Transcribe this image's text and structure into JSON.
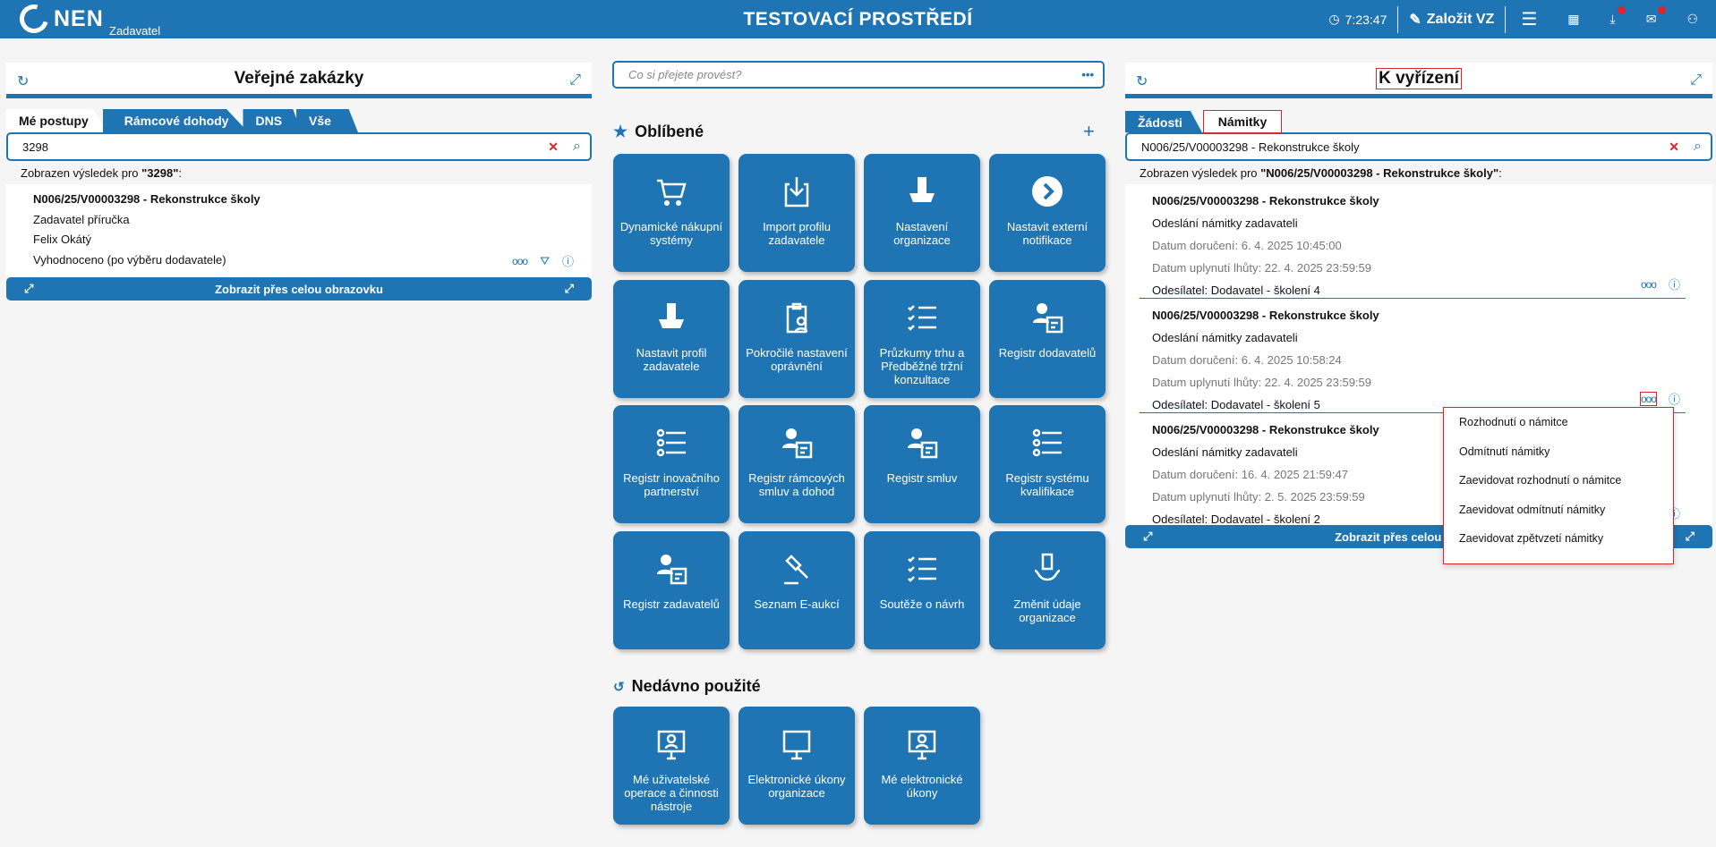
{
  "header": {
    "logo": "NEN",
    "logo_sub": "Zadavatel",
    "title": "TESTOVACÍ PROSTŘEDÍ",
    "time": "7:23:47",
    "create_label": "Založit VZ",
    "colors": {
      "brand": "#1f74b3",
      "alert": "#d9252b"
    }
  },
  "left": {
    "title": "Veřejné zakázky",
    "tabs": [
      "Mé postupy",
      "Rámcové dohody",
      "DNS",
      "Vše"
    ],
    "search_value": "3298",
    "found_prefix": "Zobrazen výsledek pro ",
    "found_query": "\"3298\"",
    "found_suffix": ":",
    "result": {
      "title": "N006/25/V00003298 - Rekonstrukce školy",
      "line1": "Zadavatel příručka",
      "line2": "Felix Okátý",
      "line3": "Vyhodnoceno (po výběru dodavatele)"
    },
    "fullscreen": "Zobrazit přes celou obrazovku"
  },
  "center": {
    "search_placeholder": "Co si přejete provést?",
    "favorites_title": "Oblíbené",
    "recent_title": "Nedávno použité",
    "favorites": [
      "Dynamické nákupní systémy",
      "Import profilu zadavatele",
      "Nastavení organizace",
      "Nastavit externí notifikace",
      "Nastavit profil zadavatele",
      "Pokročilé nastavení oprávnění",
      "Průzkumy trhu a Předběžné tržní konzultace",
      "Registr dodavatelů",
      "Registr inovačního partnerství",
      "Registr rámcových smluv a dohod",
      "Registr smluv",
      "Registr systému kvalifikace",
      "Registr zadavatelů",
      "Seznam E-aukcí",
      "Soutěže o návrh",
      "Změnit údaje organizace"
    ],
    "recent": [
      "Mé uživatelské operace a činnosti nástroje",
      "Elektronické úkony organizace",
      "Mé elektronické úkony"
    ]
  },
  "right": {
    "title": "K vyřízení",
    "tabs": [
      "Žádosti",
      "Námitky"
    ],
    "search_value": "N006/25/V00003298 - Rekonstrukce školy",
    "found_prefix": "Zobrazen výsledek pro ",
    "found_query": "\"N006/25/V00003298 - Rekonstrukce školy\"",
    "found_suffix": ":",
    "items": [
      {
        "title": "N006/25/V00003298 - Rekonstrukce školy",
        "type": "Odeslání námitky zadavateli",
        "delivered": "Datum doručení: 6. 4. 2025 10:45:00",
        "deadline": "Datum uplynutí lhůty: 22. 4. 2025 23:59:59",
        "sender": "Odesílatel: Dodavatel - školení 4"
      },
      {
        "title": "N006/25/V00003298 - Rekonstrukce školy",
        "type": "Odeslání námitky zadavateli",
        "delivered": "Datum doručení: 6. 4. 2025 10:58:24",
        "deadline": "Datum uplynutí lhůty: 22. 4. 2025 23:59:59",
        "sender": "Odesílatel: Dodavatel - školení 5"
      },
      {
        "title": "N006/25/V00003298 - Rekonstrukce školy",
        "type": "Odeslání námitky zadavateli",
        "delivered": "Datum doručení: 16. 4. 2025 21:59:47",
        "deadline": "Datum uplynutí lhůty: 2. 5. 2025 23:59:59",
        "sender": "Odesílatel: Dodavatel - školení 2"
      }
    ],
    "fullscreen": "Zobrazit přes celou obrazovku",
    "menu": [
      "Rozhodnutí o námitce",
      "Odmítnutí námitky",
      "Zaevidovat rozhodnutí o námitce",
      "Zaevidovat odmítnutí námitky",
      "Zaevidovat zpětvzetí námitky"
    ]
  }
}
